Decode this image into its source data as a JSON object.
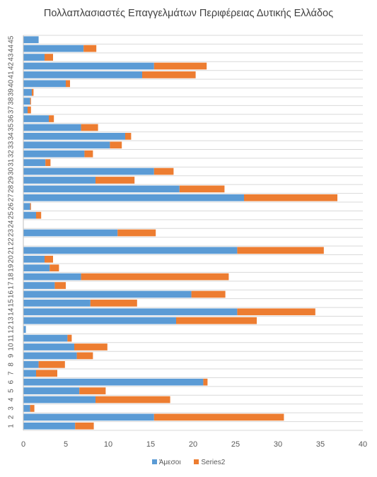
{
  "chart_data": {
    "type": "bar",
    "orientation": "horizontal",
    "stacked": true,
    "title": "Πολλαπλασιαστές Επαγγελμάτων Περιφέρειας Δυτικής Ελλάδος",
    "categories": [
      "1",
      "2",
      "3",
      "4",
      "5",
      "6",
      "7",
      "8",
      "9",
      "10",
      "11",
      "12",
      "13",
      "14",
      "15",
      "16",
      "17",
      "18",
      "19",
      "20",
      "21",
      "22",
      "23",
      "24",
      "25",
      "26",
      "27",
      "28",
      "29",
      "30",
      "31",
      "32",
      "33",
      "34",
      "35",
      "36",
      "37",
      "38",
      "39",
      "40",
      "41",
      "42",
      "43",
      "44",
      "45"
    ],
    "series": [
      {
        "name": "Άμεσοι",
        "color": "#5B9BD5",
        "values": [
          6.1,
          15.4,
          0.8,
          8.5,
          6.6,
          21.2,
          1.5,
          1.8,
          6.3,
          6.0,
          5.2,
          0.3,
          18.0,
          25.2,
          7.9,
          19.8,
          3.7,
          6.8,
          3.1,
          2.5,
          25.2,
          0,
          11.1,
          0,
          1.5,
          0.8,
          26.0,
          18.4,
          8.5,
          15.4,
          2.6,
          7.2,
          10.2,
          12.0,
          6.8,
          3.0,
          0.5,
          0.8,
          1.0,
          5.0,
          14.0,
          15.4,
          2.5,
          7.1,
          1.8
        ],
        "labels_visible": false
      },
      {
        "name": "Series2",
        "color": "#ED7D31",
        "values": [
          2.2,
          15.3,
          0.5,
          8.8,
          3.1,
          0.5,
          2.5,
          3.1,
          1.9,
          3.9,
          0.5,
          0,
          9.5,
          9.2,
          5.5,
          4.0,
          1.3,
          17.4,
          1.1,
          1.0,
          10.2,
          0,
          4.5,
          0,
          0.6,
          0.1,
          11.0,
          5.3,
          4.6,
          2.3,
          0.6,
          1.0,
          1.4,
          0.7,
          2.0,
          0.6,
          0.4,
          0.1,
          0.2,
          0.5,
          6.3,
          6.2,
          1.0,
          1.5,
          0
        ]
      }
    ],
    "xlim": [
      0,
      40
    ],
    "xticks": [
      "0",
      "5",
      "10",
      "15",
      "20",
      "25",
      "30",
      "35",
      "40"
    ],
    "xlabel": "",
    "ylabel": "",
    "grid": "horizontal category lines",
    "legend_position": "bottom"
  }
}
